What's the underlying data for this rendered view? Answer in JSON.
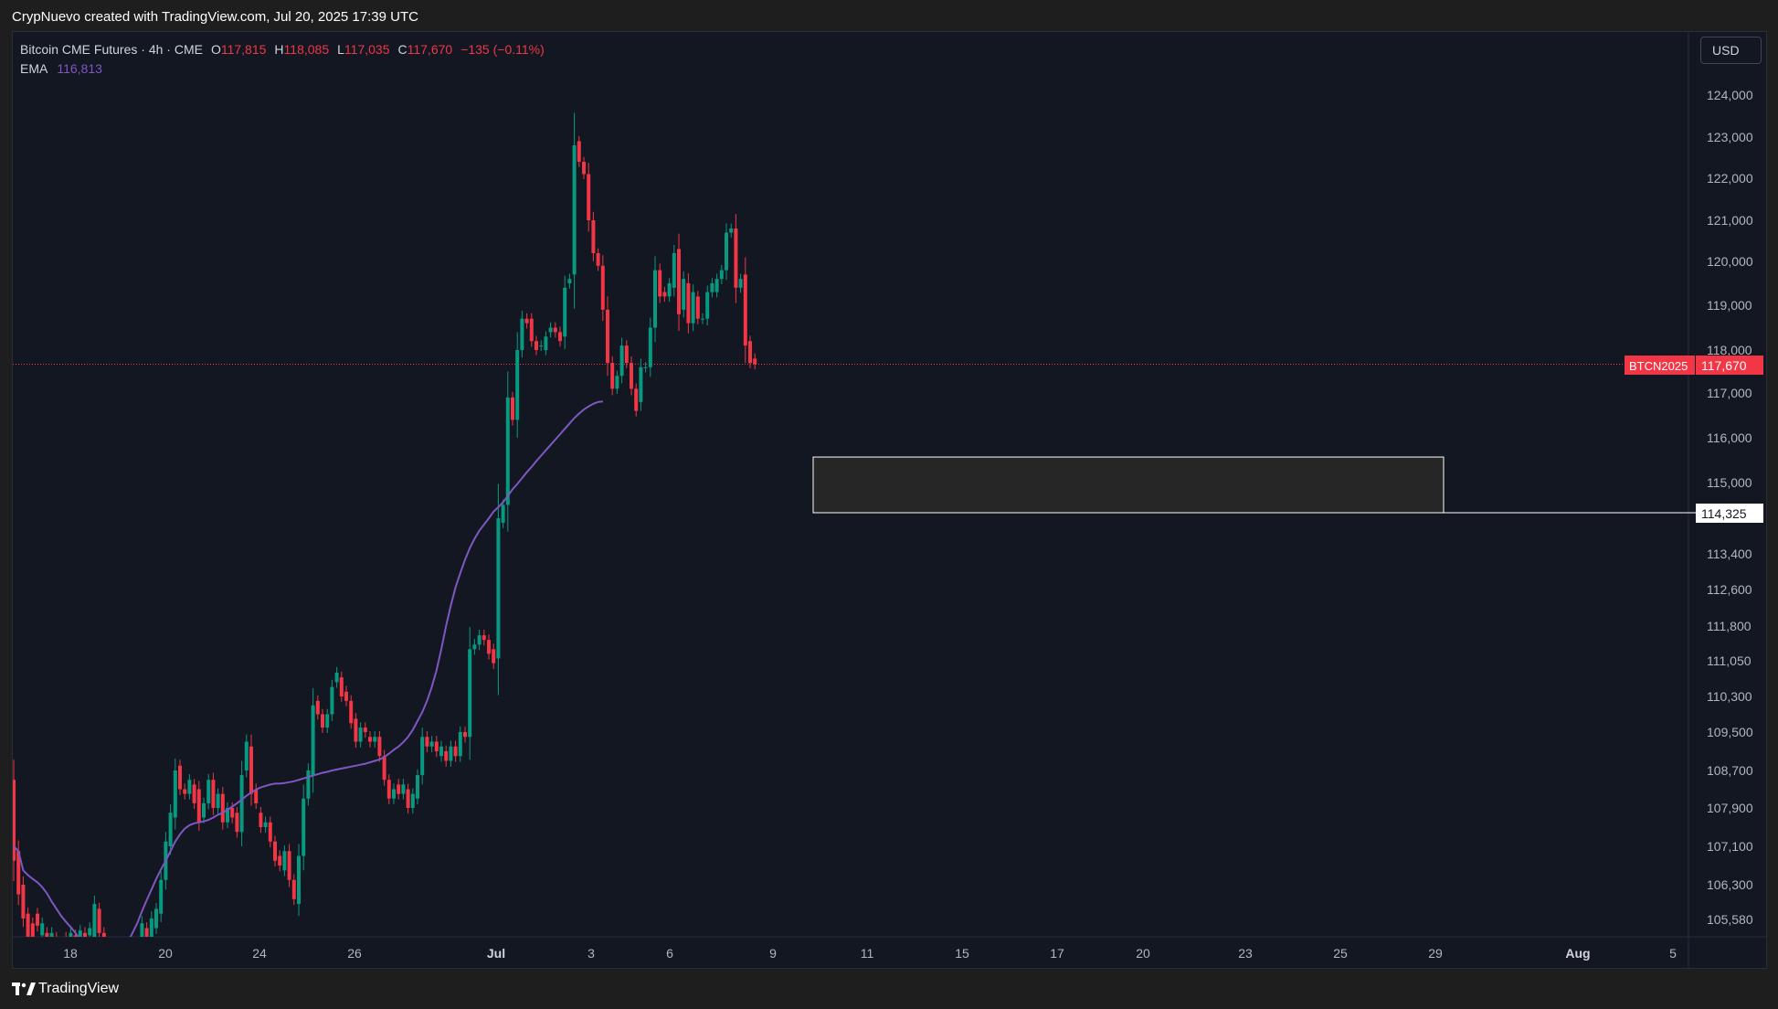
{
  "header": {
    "attribution": "CrypNuevo created with TradingView.com, Jul 20, 2025 17:39 UTC"
  },
  "legend": {
    "title": "Bitcoin CME Futures · 4h · CME",
    "open_label": "O",
    "open": "117,815",
    "high_label": "H",
    "high": "118,085",
    "low_label": "L",
    "low": "117,035",
    "close_label": "C",
    "close": "117,670",
    "change": "−135 (−0.11%)",
    "ema_label": "EMA",
    "ema_value": "116,813"
  },
  "currency_button": "USD",
  "footer": {
    "brand": "TradingView"
  },
  "colors": {
    "up": "#089981",
    "down": "#f23645",
    "ema": "#7e57c2",
    "background": "#131722"
  },
  "chart_data": {
    "type": "candlestick",
    "symbol_tag": "BTCN2025",
    "last_price": 117670,
    "last_price_label": "117,670",
    "y_axis": {
      "ticks": [
        124000,
        123000,
        122000,
        121000,
        120000,
        119000,
        118000,
        117000,
        116000,
        115000,
        113400,
        112600,
        111800,
        111050,
        110300,
        109500,
        108700,
        107900,
        107100,
        106300,
        105580
      ],
      "tick_labels": [
        "124,000",
        "123,000",
        "122,000",
        "121,000",
        "120,000",
        "119,000",
        "118,000",
        "117,000",
        "116,000",
        "115,000",
        "113,400",
        "112,600",
        "111,800",
        "111,050",
        "110,300",
        "109,500",
        "108,700",
        "107,900",
        "107,100",
        "106,300",
        "105,580"
      ]
    },
    "x_axis": {
      "tick_labels": [
        "18",
        "20",
        "24",
        "26",
        "Jul",
        "3",
        "6",
        "9",
        "11",
        "15",
        "17",
        "20",
        "23",
        "25",
        "29",
        "Aug",
        "5"
      ]
    },
    "zone": {
      "top": 115570,
      "bottom": 114325,
      "label": "114,325",
      "from": "Jul 10",
      "to": "Jul 29"
    },
    "candles": [
      [
        108500,
        106800
      ],
      [
        107000,
        106100
      ],
      [
        106300,
        105600
      ],
      [
        105700,
        105200
      ],
      [
        105500,
        105200
      ],
      [
        105700,
        105450
      ],
      [
        105250,
        105500
      ],
      [
        105300,
        105200
      ],
      [
        105100,
        105300
      ],
      [
        105200,
        105050
      ],
      [
        105100,
        105000
      ],
      [
        105200,
        105100
      ],
      [
        105150,
        105300
      ],
      [
        105250,
        105150
      ],
      [
        105200,
        105350
      ],
      [
        105300,
        105200
      ],
      [
        105250,
        105400
      ],
      [
        105200,
        105900
      ],
      [
        105800,
        105300
      ],
      [
        105300,
        105000
      ],
      [
        105100,
        104900
      ],
      [
        104900,
        105000
      ],
      [
        105000,
        104800
      ],
      [
        104700,
        104900
      ],
      [
        104800,
        104700
      ],
      [
        104800,
        104700
      ],
      [
        104700,
        105000
      ],
      [
        104900,
        105500
      ],
      [
        105400,
        105100
      ],
      [
        105000,
        105600
      ],
      [
        105400,
        105800
      ],
      [
        105700,
        106400
      ],
      [
        106400,
        107200
      ],
      [
        107100,
        107800
      ],
      [
        107700,
        108700
      ],
      [
        108800,
        108300
      ],
      [
        108300,
        108200
      ],
      [
        108200,
        108500
      ],
      [
        108400,
        108000
      ],
      [
        108300,
        107600
      ],
      [
        107700,
        108000
      ],
      [
        108000,
        108500
      ],
      [
        108500,
        107900
      ],
      [
        107900,
        108200
      ],
      [
        108200,
        107600
      ],
      [
        107600,
        107900
      ],
      [
        107900,
        107700
      ],
      [
        107800,
        107400
      ],
      [
        107400,
        108600
      ],
      [
        108700,
        109300
      ],
      [
        109200,
        108200
      ],
      [
        108300,
        108000
      ],
      [
        107800,
        107500
      ],
      [
        107500,
        107600
      ],
      [
        107600,
        107200
      ],
      [
        107200,
        106800
      ],
      [
        106900,
        106700
      ],
      [
        106600,
        107000
      ],
      [
        107000,
        106400
      ],
      [
        106400,
        106000
      ],
      [
        105900,
        106900
      ],
      [
        106900,
        108100
      ],
      [
        108100,
        108700
      ],
      [
        108600,
        110100
      ],
      [
        110200,
        109900
      ],
      [
        109900,
        109600
      ],
      [
        109600,
        109900
      ],
      [
        109900,
        110500
      ],
      [
        110600,
        110800
      ],
      [
        110700,
        110300
      ],
      [
        110400,
        110200
      ],
      [
        110200,
        109700
      ],
      [
        109800,
        109300
      ],
      [
        109300,
        109600
      ],
      [
        109600,
        109500
      ],
      [
        109400,
        109300
      ],
      [
        109300,
        109400
      ],
      [
        109400,
        109000
      ],
      [
        109000,
        108500
      ],
      [
        108500,
        108100
      ],
      [
        108100,
        108300
      ],
      [
        108400,
        108200
      ],
      [
        108200,
        108400
      ],
      [
        108300,
        107900
      ],
      [
        107900,
        108200
      ],
      [
        108100,
        108600
      ],
      [
        108600,
        109400
      ],
      [
        109400,
        109200
      ],
      [
        109200,
        109300
      ],
      [
        109300,
        109100
      ],
      [
        109000,
        109200
      ],
      [
        109100,
        108900
      ],
      [
        108900,
        109200
      ],
      [
        109200,
        109000
      ],
      [
        109000,
        109500
      ],
      [
        109500,
        109400
      ],
      [
        109400,
        111300
      ],
      [
        111300,
        111400
      ],
      [
        111400,
        111600
      ],
      [
        111600,
        111500
      ],
      [
        111500,
        111200
      ],
      [
        111300,
        111000
      ],
      [
        111100,
        114200
      ],
      [
        114100,
        114500
      ],
      [
        114500,
        116900
      ],
      [
        116900,
        116400
      ],
      [
        116400,
        118000
      ],
      [
        118000,
        118700
      ],
      [
        118700,
        118600
      ],
      [
        118700,
        118200
      ],
      [
        118200,
        118000
      ],
      [
        118100,
        118100
      ],
      [
        118000,
        118300
      ],
      [
        118400,
        118500
      ],
      [
        118500,
        118400
      ],
      [
        118400,
        118200
      ],
      [
        118300,
        119400
      ],
      [
        119500,
        119600
      ],
      [
        119700,
        122800
      ],
      [
        122900,
        122400
      ],
      [
        122400,
        122100
      ],
      [
        122100,
        121000
      ],
      [
        121000,
        120200
      ],
      [
        120200,
        119900
      ],
      [
        119900,
        118900
      ],
      [
        118900,
        117700
      ],
      [
        117700,
        117100
      ],
      [
        117100,
        117400
      ],
      [
        117400,
        118100
      ],
      [
        118100,
        117700
      ],
      [
        117700,
        117100
      ],
      [
        117100,
        116600
      ],
      [
        116800,
        117600
      ],
      [
        117600,
        117600
      ],
      [
        117600,
        118500
      ],
      [
        118500,
        119800
      ],
      [
        119800,
        119200
      ],
      [
        119300,
        119200
      ],
      [
        119200,
        119500
      ],
      [
        119400,
        120200
      ],
      [
        120300,
        118800
      ],
      [
        118900,
        119600
      ],
      [
        119500,
        118600
      ],
      [
        118600,
        119300
      ],
      [
        119200,
        118700
      ],
      [
        118700,
        118700
      ],
      [
        118700,
        119300
      ],
      [
        119300,
        119500
      ],
      [
        119300,
        119600
      ],
      [
        119600,
        119800
      ],
      [
        119800,
        120700
      ],
      [
        120700,
        120800
      ],
      [
        120800,
        119400
      ],
      [
        119400,
        119600
      ],
      [
        119700,
        118100
      ],
      [
        118200,
        117700
      ],
      [
        117800,
        117670
      ]
    ],
    "ema_series": [
      107100,
      107000,
      106600,
      106500,
      106420,
      106350,
      106250,
      106120,
      105950,
      105800,
      105650,
      105530,
      105420,
      105300,
      105160,
      105000,
      104890,
      104800,
      104700,
      104600,
      104480,
      104600,
      104700,
      104900,
      105100,
      105300,
      105500,
      105750,
      105980,
      106200,
      106420,
      106620,
      106800,
      107000,
      107200,
      107350,
      107470,
      107540,
      107580,
      107600,
      107620,
      107650,
      107700,
      107760,
      107800,
      107860,
      107930,
      108000,
      108080,
      108160,
      108230,
      108290,
      108340,
      108370,
      108400,
      108420,
      108420,
      108430,
      108450,
      108470,
      108500,
      108530,
      108560,
      108590,
      108620,
      108650,
      108670,
      108700,
      108720,
      108740,
      108760,
      108780,
      108800,
      108820,
      108840,
      108870,
      108900,
      108930,
      108980,
      109050,
      109130,
      109200,
      109290,
      109400,
      109550,
      109750,
      109950,
      110200,
      110500,
      110850,
      111300,
      111800,
      112250,
      112650,
      112970,
      113270,
      113530,
      113740,
      113920,
      114060,
      114200,
      114350,
      114450,
      114560,
      114700,
      114850,
      114970,
      115100,
      115230,
      115350,
      115480,
      115600,
      115720,
      115840,
      115960,
      116080,
      116200,
      116320,
      116440,
      116540,
      116630,
      116700,
      116760,
      116800,
      116813
    ]
  }
}
